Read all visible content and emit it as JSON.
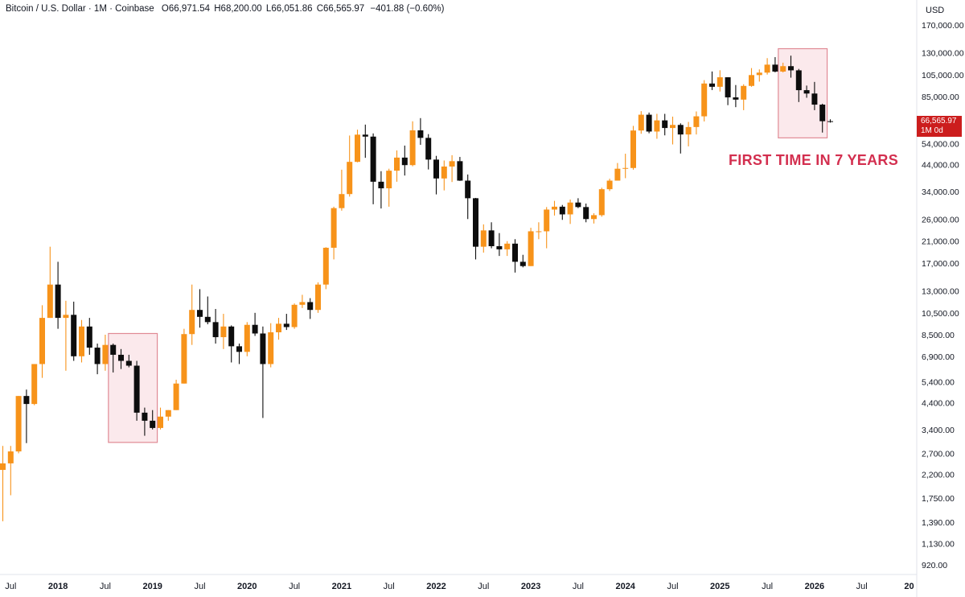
{
  "header": {
    "symbol": "Bitcoin / U.S. Dollar · 1M · Coinbase",
    "open_label": "O",
    "open": "66,971.54",
    "high_label": "H",
    "high": "68,200.00",
    "low_label": "L",
    "low": "66,051.86",
    "close_label": "C",
    "close": "66,565.97",
    "change": "−401.88 (−0.60%)"
  },
  "currency": "USD",
  "annotation": "FIRST TIME IN 7 YEARS",
  "price_tag": {
    "price": "66,565.97",
    "interval": "1M 0d"
  },
  "colors": {
    "up": "#f7931a",
    "down": "#0d0d0d",
    "highlight_fill": "#fbe9ec",
    "highlight_stroke": "#e08a95",
    "annotation": "#d32f4f",
    "price_tag": "#cc1d1d"
  },
  "chart_data": {
    "type": "candlestick",
    "scale": "log",
    "ylim": [
      850,
      185000
    ],
    "y_ticks": [
      "170,000.00",
      "130,000.00",
      "105,000.00",
      "85,000.00",
      "54,000.00",
      "44,000.00",
      "34,000.00",
      "26,000.00",
      "21,000.00",
      "17,000.00",
      "13,000.00",
      "10,500.00",
      "8,500.00",
      "6,900.00",
      "5,400.00",
      "4,400.00",
      "3,400.00",
      "2,700.00",
      "2,200.00",
      "1,750.00",
      "1,390.00",
      "1,130.00",
      "920.00"
    ],
    "x_ticks": [
      {
        "label": "Jul",
        "month": "2017-07"
      },
      {
        "label": "2018",
        "month": "2018-01"
      },
      {
        "label": "Jul",
        "month": "2018-07"
      },
      {
        "label": "2019",
        "month": "2019-01"
      },
      {
        "label": "Jul",
        "month": "2019-07"
      },
      {
        "label": "2020",
        "month": "2020-01"
      },
      {
        "label": "Jul",
        "month": "2020-07"
      },
      {
        "label": "2021",
        "month": "2021-01"
      },
      {
        "label": "Jul",
        "month": "2021-07"
      },
      {
        "label": "2022",
        "month": "2022-01"
      },
      {
        "label": "Jul",
        "month": "2022-07"
      },
      {
        "label": "2023",
        "month": "2023-01"
      },
      {
        "label": "Jul",
        "month": "2023-07"
      },
      {
        "label": "2024",
        "month": "2024-01"
      },
      {
        "label": "Jul",
        "month": "2024-07"
      },
      {
        "label": "2025",
        "month": "2025-01"
      },
      {
        "label": "Jul",
        "month": "2025-07"
      },
      {
        "label": "2026",
        "month": "2026-01"
      },
      {
        "label": "Jul",
        "month": "2026-07"
      },
      {
        "label": "20",
        "month": "2027-01"
      }
    ],
    "highlight_boxes": [
      {
        "start": "2018-08",
        "end": "2019-01",
        "top": 8600,
        "bottom": 3000
      },
      {
        "start": "2025-09",
        "end": "2026-02",
        "top": 135000,
        "bottom": 57000
      }
    ],
    "candles": [
      {
        "t": "2017-06",
        "o": 2300,
        "h": 2900,
        "l": 1400,
        "c": 2450
      },
      {
        "t": "2017-07",
        "o": 2450,
        "h": 2900,
        "l": 1800,
        "c": 2750
      },
      {
        "t": "2017-08",
        "o": 2750,
        "h": 4700,
        "l": 2700,
        "c": 4700
      },
      {
        "t": "2017-09",
        "o": 4700,
        "h": 5000,
        "l": 2980,
        "c": 4350
      },
      {
        "t": "2017-10",
        "o": 4350,
        "h": 6400,
        "l": 4300,
        "c": 6400
      },
      {
        "t": "2017-11",
        "o": 6400,
        "h": 11300,
        "l": 5600,
        "c": 10000
      },
      {
        "t": "2017-12",
        "o": 10000,
        "h": 19900,
        "l": 10000,
        "c": 13800
      },
      {
        "t": "2018-01",
        "o": 13800,
        "h": 17200,
        "l": 9000,
        "c": 10000
      },
      {
        "t": "2018-02",
        "o": 10000,
        "h": 11800,
        "l": 6000,
        "c": 10300
      },
      {
        "t": "2018-03",
        "o": 10300,
        "h": 11700,
        "l": 6600,
        "c": 6900
      },
      {
        "t": "2018-04",
        "o": 6900,
        "h": 9800,
        "l": 6500,
        "c": 9200
      },
      {
        "t": "2018-05",
        "o": 9200,
        "h": 10000,
        "l": 7000,
        "c": 7500
      },
      {
        "t": "2018-06",
        "o": 7500,
        "h": 7800,
        "l": 5800,
        "c": 6400
      },
      {
        "t": "2018-07",
        "o": 6400,
        "h": 8500,
        "l": 6000,
        "c": 7700
      },
      {
        "t": "2018-08",
        "o": 7700,
        "h": 7800,
        "l": 5900,
        "c": 7000
      },
      {
        "t": "2018-09",
        "o": 7000,
        "h": 7400,
        "l": 6100,
        "c": 6600
      },
      {
        "t": "2018-10",
        "o": 6600,
        "h": 7000,
        "l": 6200,
        "c": 6300
      },
      {
        "t": "2018-11",
        "o": 6300,
        "h": 6600,
        "l": 3700,
        "c": 4000
      },
      {
        "t": "2018-12",
        "o": 4000,
        "h": 4200,
        "l": 3200,
        "c": 3700
      },
      {
        "t": "2019-01",
        "o": 3700,
        "h": 4100,
        "l": 3400,
        "c": 3450
      },
      {
        "t": "2019-02",
        "o": 3450,
        "h": 4200,
        "l": 3400,
        "c": 3850
      },
      {
        "t": "2019-03",
        "o": 3850,
        "h": 4100,
        "l": 3700,
        "c": 4100
      },
      {
        "t": "2019-04",
        "o": 4100,
        "h": 5500,
        "l": 4100,
        "c": 5300
      },
      {
        "t": "2019-05",
        "o": 5300,
        "h": 9000,
        "l": 5300,
        "c": 8550
      },
      {
        "t": "2019-06",
        "o": 8550,
        "h": 13800,
        "l": 7700,
        "c": 10800
      },
      {
        "t": "2019-07",
        "o": 10800,
        "h": 13200,
        "l": 9100,
        "c": 10100
      },
      {
        "t": "2019-08",
        "o": 10100,
        "h": 12300,
        "l": 9400,
        "c": 9600
      },
      {
        "t": "2019-09",
        "o": 9600,
        "h": 10900,
        "l": 7800,
        "c": 8300
      },
      {
        "t": "2019-10",
        "o": 8300,
        "h": 10400,
        "l": 7400,
        "c": 9200
      },
      {
        "t": "2019-11",
        "o": 9200,
        "h": 9300,
        "l": 6500,
        "c": 7600
      },
      {
        "t": "2019-12",
        "o": 7600,
        "h": 7800,
        "l": 6400,
        "c": 7200
      },
      {
        "t": "2020-01",
        "o": 7200,
        "h": 9600,
        "l": 6900,
        "c": 9350
      },
      {
        "t": "2020-02",
        "o": 9350,
        "h": 10500,
        "l": 8400,
        "c": 8600
      },
      {
        "t": "2020-03",
        "o": 8600,
        "h": 9200,
        "l": 3800,
        "c": 6400
      },
      {
        "t": "2020-04",
        "o": 6400,
        "h": 9500,
        "l": 6200,
        "c": 8700
      },
      {
        "t": "2020-05",
        "o": 8700,
        "h": 10000,
        "l": 8100,
        "c": 9450
      },
      {
        "t": "2020-06",
        "o": 9450,
        "h": 10400,
        "l": 8900,
        "c": 9150
      },
      {
        "t": "2020-07",
        "o": 9150,
        "h": 11500,
        "l": 9000,
        "c": 11350
      },
      {
        "t": "2020-08",
        "o": 11350,
        "h": 12500,
        "l": 11000,
        "c": 11650
      },
      {
        "t": "2020-09",
        "o": 11650,
        "h": 12100,
        "l": 9900,
        "c": 10800
      },
      {
        "t": "2020-10",
        "o": 10800,
        "h": 14100,
        "l": 10500,
        "c": 13800
      },
      {
        "t": "2020-11",
        "o": 13800,
        "h": 19800,
        "l": 13200,
        "c": 19700
      },
      {
        "t": "2020-12",
        "o": 19700,
        "h": 29300,
        "l": 17600,
        "c": 28900
      },
      {
        "t": "2021-01",
        "o": 28900,
        "h": 41900,
        "l": 28200,
        "c": 33100
      },
      {
        "t": "2021-02",
        "o": 33100,
        "h": 58300,
        "l": 32300,
        "c": 45200
      },
      {
        "t": "2021-03",
        "o": 45200,
        "h": 61700,
        "l": 45000,
        "c": 58800
      },
      {
        "t": "2021-04",
        "o": 58800,
        "h": 64800,
        "l": 47000,
        "c": 57700
      },
      {
        "t": "2021-05",
        "o": 57700,
        "h": 59500,
        "l": 30000,
        "c": 37300
      },
      {
        "t": "2021-06",
        "o": 37300,
        "h": 41300,
        "l": 28800,
        "c": 35000
      },
      {
        "t": "2021-07",
        "o": 35000,
        "h": 42300,
        "l": 29300,
        "c": 41500
      },
      {
        "t": "2021-08",
        "o": 41500,
        "h": 50500,
        "l": 37300,
        "c": 47100
      },
      {
        "t": "2021-09",
        "o": 47100,
        "h": 52900,
        "l": 39600,
        "c": 43800
      },
      {
        "t": "2021-10",
        "o": 43800,
        "h": 66900,
        "l": 43300,
        "c": 61300
      },
      {
        "t": "2021-11",
        "o": 61300,
        "h": 69000,
        "l": 53300,
        "c": 57000
      },
      {
        "t": "2021-12",
        "o": 57000,
        "h": 59100,
        "l": 42000,
        "c": 46200
      },
      {
        "t": "2022-01",
        "o": 46200,
        "h": 47900,
        "l": 33000,
        "c": 38500
      },
      {
        "t": "2022-02",
        "o": 38500,
        "h": 45800,
        "l": 34300,
        "c": 43200
      },
      {
        "t": "2022-03",
        "o": 43200,
        "h": 48200,
        "l": 37200,
        "c": 45500
      },
      {
        "t": "2022-04",
        "o": 45500,
        "h": 47400,
        "l": 37600,
        "c": 37700
      },
      {
        "t": "2022-05",
        "o": 37700,
        "h": 40000,
        "l": 26000,
        "c": 31800
      },
      {
        "t": "2022-06",
        "o": 31800,
        "h": 31900,
        "l": 17600,
        "c": 19900
      },
      {
        "t": "2022-07",
        "o": 19900,
        "h": 24700,
        "l": 18800,
        "c": 23300
      },
      {
        "t": "2022-08",
        "o": 23300,
        "h": 25200,
        "l": 19600,
        "c": 20000
      },
      {
        "t": "2022-09",
        "o": 20000,
        "h": 22700,
        "l": 18200,
        "c": 19400
      },
      {
        "t": "2022-10",
        "o": 19400,
        "h": 21000,
        "l": 18200,
        "c": 20500
      },
      {
        "t": "2022-11",
        "o": 20500,
        "h": 21400,
        "l": 15500,
        "c": 17200
      },
      {
        "t": "2022-12",
        "o": 17200,
        "h": 18400,
        "l": 16300,
        "c": 16500
      },
      {
        "t": "2023-01",
        "o": 16500,
        "h": 23900,
        "l": 16500,
        "c": 23100
      },
      {
        "t": "2023-02",
        "o": 23100,
        "h": 25200,
        "l": 21400,
        "c": 23100
      },
      {
        "t": "2023-03",
        "o": 23100,
        "h": 29200,
        "l": 19600,
        "c": 28500
      },
      {
        "t": "2023-04",
        "o": 28500,
        "h": 31000,
        "l": 26900,
        "c": 29300
      },
      {
        "t": "2023-05",
        "o": 29300,
        "h": 29800,
        "l": 25800,
        "c": 27200
      },
      {
        "t": "2023-06",
        "o": 27200,
        "h": 31400,
        "l": 24800,
        "c": 30500
      },
      {
        "t": "2023-07",
        "o": 30500,
        "h": 31800,
        "l": 28900,
        "c": 29200
      },
      {
        "t": "2023-08",
        "o": 29200,
        "h": 30200,
        "l": 25200,
        "c": 26000
      },
      {
        "t": "2023-09",
        "o": 26000,
        "h": 27500,
        "l": 24900,
        "c": 27000
      },
      {
        "t": "2023-10",
        "o": 27000,
        "h": 35200,
        "l": 26600,
        "c": 34700
      },
      {
        "t": "2023-11",
        "o": 34700,
        "h": 38400,
        "l": 34100,
        "c": 37700
      },
      {
        "t": "2023-12",
        "o": 37700,
        "h": 44700,
        "l": 37700,
        "c": 42300
      },
      {
        "t": "2024-01",
        "o": 42300,
        "h": 48900,
        "l": 38600,
        "c": 42600
      },
      {
        "t": "2024-02",
        "o": 42600,
        "h": 64000,
        "l": 41900,
        "c": 61200
      },
      {
        "t": "2024-03",
        "o": 61200,
        "h": 73800,
        "l": 59300,
        "c": 71300
      },
      {
        "t": "2024-04",
        "o": 71300,
        "h": 72800,
        "l": 59600,
        "c": 60600
      },
      {
        "t": "2024-05",
        "o": 60600,
        "h": 71900,
        "l": 56500,
        "c": 67500
      },
      {
        "t": "2024-06",
        "o": 67500,
        "h": 71900,
        "l": 58400,
        "c": 62700
      },
      {
        "t": "2024-07",
        "o": 62700,
        "h": 70000,
        "l": 53500,
        "c": 64600
      },
      {
        "t": "2024-08",
        "o": 64600,
        "h": 65600,
        "l": 49000,
        "c": 58900
      },
      {
        "t": "2024-09",
        "o": 58900,
        "h": 66500,
        "l": 52500,
        "c": 63300
      },
      {
        "t": "2024-10",
        "o": 63300,
        "h": 73600,
        "l": 58900,
        "c": 70200
      },
      {
        "t": "2024-11",
        "o": 70200,
        "h": 99600,
        "l": 66800,
        "c": 96400
      },
      {
        "t": "2024-12",
        "o": 96400,
        "h": 108300,
        "l": 90500,
        "c": 93400
      },
      {
        "t": "2025-01",
        "o": 93400,
        "h": 109600,
        "l": 89200,
        "c": 102400
      },
      {
        "t": "2025-02",
        "o": 102400,
        "h": 102500,
        "l": 78200,
        "c": 84300
      },
      {
        "t": "2025-03",
        "o": 84300,
        "h": 95000,
        "l": 76700,
        "c": 82500
      },
      {
        "t": "2025-04",
        "o": 82500,
        "h": 95700,
        "l": 74500,
        "c": 94200
      },
      {
        "t": "2025-05",
        "o": 94200,
        "h": 111900,
        "l": 93400,
        "c": 104600
      },
      {
        "t": "2025-06",
        "o": 104600,
        "h": 110500,
        "l": 98200,
        "c": 107100
      },
      {
        "t": "2025-07",
        "o": 107100,
        "h": 123200,
        "l": 105100,
        "c": 115700
      },
      {
        "t": "2025-08",
        "o": 115700,
        "h": 124400,
        "l": 107400,
        "c": 108200
      },
      {
        "t": "2025-09",
        "o": 108200,
        "h": 117900,
        "l": 107300,
        "c": 114000
      },
      {
        "t": "2025-10",
        "o": 114000,
        "h": 126200,
        "l": 102000,
        "c": 109500
      },
      {
        "t": "2025-11",
        "o": 109500,
        "h": 111000,
        "l": 80600,
        "c": 90400
      },
      {
        "t": "2025-12",
        "o": 90400,
        "h": 94500,
        "l": 84000,
        "c": 87500
      },
      {
        "t": "2026-01",
        "o": 87500,
        "h": 97900,
        "l": 74500,
        "c": 78600
      },
      {
        "t": "2026-02",
        "o": 78600,
        "h": 79300,
        "l": 60000,
        "c": 66972
      },
      {
        "t": "2026-03",
        "o": 66971.54,
        "h": 68200,
        "l": 66051.86,
        "c": 66565.97
      }
    ]
  }
}
